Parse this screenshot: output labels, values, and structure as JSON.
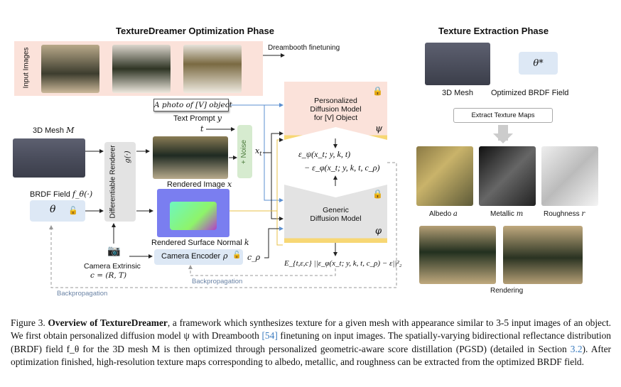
{
  "left_title": "TextureDreamer Optimization Phase",
  "right_title": "Texture Extraction Phase",
  "input_images_label": "Input Images",
  "dreambooth_label": "Dreambooth finetuning",
  "text_prompt_box": "A photo of [V] object",
  "text_prompt_label": "Text Prompt",
  "text_prompt_symbol": "y",
  "t_symbol": "t",
  "noise_label": "+ Noise",
  "xt_symbol": "x_t",
  "mesh_label": "3D Mesh",
  "mesh_symbol": "M",
  "brdf_label": "BRDF Field",
  "brdf_symbol": "f_θ(·)",
  "theta": "θ",
  "renderer_label": "Differentiable Renderer",
  "renderer_symbol": "g(·)",
  "rendered_image_label": "Rendered Image",
  "rendered_image_symbol": "x",
  "normal_label": "Rendered Surface Normal",
  "normal_symbol": "k",
  "camera_label": "Camera Extrinsic",
  "camera_symbol": "c = (R, T)",
  "camera_encoder_label": "Camera Encoder",
  "rho": "ρ",
  "c_rho": "c_ρ",
  "personalized_model": [
    "Personalized",
    "Diffusion Model",
    "for [V] Object"
  ],
  "psi": "ψ",
  "generic_model": [
    "Generic",
    "Diffusion Model"
  ],
  "phi": "φ",
  "eq_diff_1": "ε_ψ(x_t; y, k, t)",
  "eq_diff_2": "− ε_φ(x_t; y, k, t, c_ρ)",
  "eq_loss": "E_{t,ε,c} ||ε_φ(x_t; y, k, t, c_ρ) − ε||²₂",
  "backprop_1": "Backpropagation",
  "backprop_2": "Backpropagation",
  "right": {
    "mesh_label": "3D Mesh",
    "theta_star": "θ*",
    "brdf_label": "Optimized BRDF Field",
    "extract_button": "Extract Texture Maps",
    "maps": [
      {
        "label": "Albedo",
        "symbol": "a"
      },
      {
        "label": "Metallic",
        "symbol": "m"
      },
      {
        "label": "Roughness",
        "symbol": "r"
      }
    ],
    "rendering_label": "Rendering"
  },
  "caption": {
    "prefix": "Figure 3.",
    "bold": "Overview of TextureDreamer",
    "p1": ", a framework which synthesizes texture for a given mesh with appearance similar to 3-5 input images of an object. We first obtain personalized diffusion model ψ with Dreambooth ",
    "ref1": "[54]",
    "p2": " finetuning on input images. The spatially-varying bidirectional reflectance distribution (BRDF) field f_θ for the 3D mesh M is then optimized through personalized geometric-aware score distillation (PGSD) (detailed in Section ",
    "ref2": "3.2",
    "p3": "). After optimization finished, high-resolution texture maps corresponding to albedo, metallic, and roughness can be extracted from the optimized BRDF field."
  },
  "colors": {
    "pink": "#fbe2da",
    "gray": "#e3e3e3",
    "blue_box": "#dde8f5",
    "green": "#d6ebcf",
    "yellow": "#f7d774",
    "arrow_blue": "#5b8fd0"
  }
}
